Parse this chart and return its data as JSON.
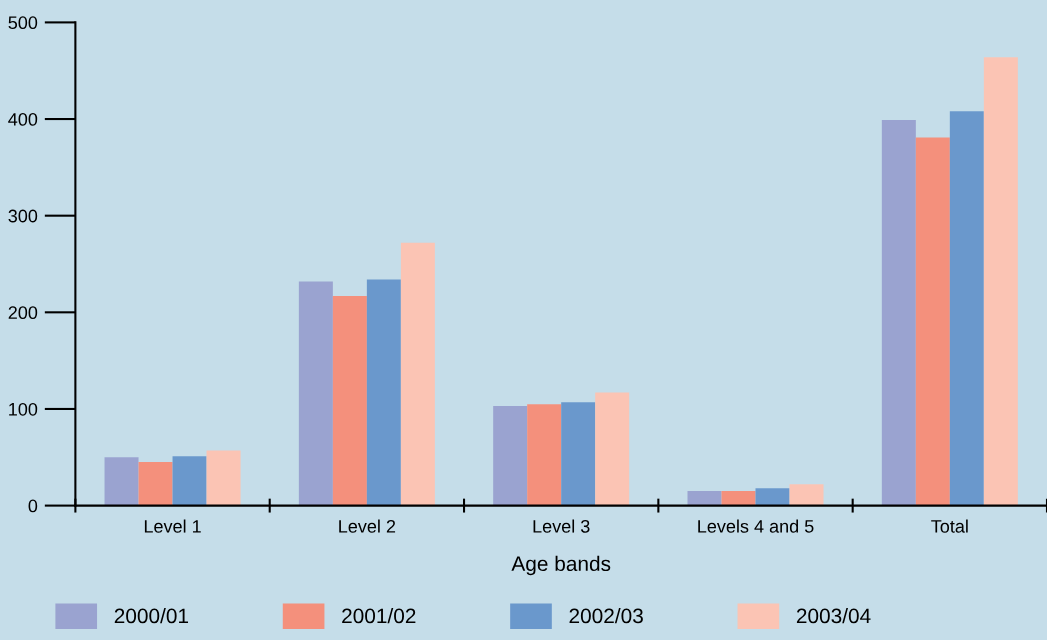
{
  "chart_data": {
    "type": "bar",
    "xlabel": "Age bands",
    "categories": [
      "Level 1",
      "Level 2",
      "Level 3",
      "Levels 4 and 5",
      "Total"
    ],
    "series": [
      {
        "name": "2000/01",
        "color": "#9aa3d0",
        "values": [
          50,
          232,
          103,
          15,
          399
        ]
      },
      {
        "name": "2001/02",
        "color": "#f4907c",
        "values": [
          45,
          217,
          105,
          15,
          381
        ]
      },
      {
        "name": "2002/03",
        "color": "#6a98cc",
        "values": [
          51,
          234,
          107,
          18,
          408
        ]
      },
      {
        "name": "2003/04",
        "color": "#fbc4b4",
        "values": [
          57,
          272,
          117,
          22,
          464
        ]
      }
    ],
    "ylim": [
      0,
      500
    ],
    "yticks": [
      0,
      100,
      200,
      300,
      400,
      500
    ],
    "grid": false,
    "legend": "bottom"
  }
}
